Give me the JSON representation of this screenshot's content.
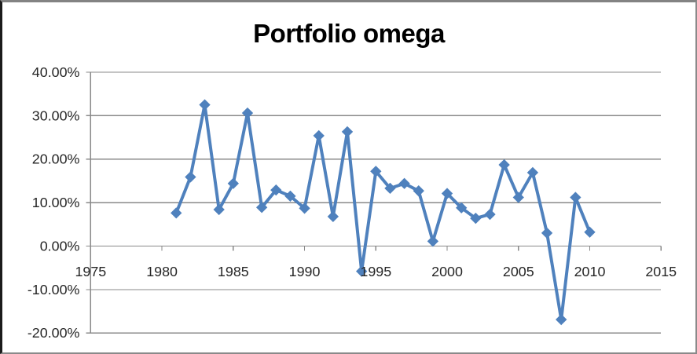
{
  "frame": {
    "background": "#ffffff",
    "border_color": "#8a8a8a",
    "border_left_color": "#1b1b1b"
  },
  "chart_data": {
    "type": "line",
    "title": "Portfolio omega",
    "x": [
      1981,
      1982,
      1983,
      1984,
      1985,
      1986,
      1987,
      1988,
      1989,
      1990,
      1991,
      1992,
      1993,
      1994,
      1995,
      1996,
      1997,
      1998,
      1999,
      2000,
      2001,
      2002,
      2003,
      2004,
      2005,
      2006,
      2007,
      2008,
      2009,
      2010
    ],
    "values": [
      7.6,
      15.9,
      32.5,
      8.4,
      14.4,
      30.6,
      8.9,
      12.9,
      11.5,
      8.7,
      25.4,
      6.8,
      26.3,
      -5.8,
      17.2,
      13.3,
      14.4,
      12.7,
      1.1,
      12.1,
      8.8,
      6.4,
      7.3,
      18.7,
      11.2,
      16.9,
      3.0,
      -16.9,
      11.2,
      3.2
    ],
    "values_unit": "percent",
    "xlabel": "",
    "ylabel": "",
    "xlim": [
      1975,
      2015
    ],
    "ylim": [
      -20,
      40
    ],
    "x_ticks": [
      1975,
      1980,
      1985,
      1990,
      1995,
      2000,
      2005,
      2010,
      2015
    ],
    "y_ticks": [
      40,
      30,
      20,
      10,
      0,
      -10,
      -20
    ],
    "y_tick_labels": [
      "40.00%",
      "30.00%",
      "20.00%",
      "10.00%",
      "0.00%",
      "-10.00%",
      "-20.00%"
    ],
    "x_tick_labels": [
      "1975",
      "1980",
      "1985",
      "1990",
      "1995",
      "2000",
      "2005",
      "2010",
      "2015"
    ],
    "grid": true,
    "legend": "none",
    "marker": "diamond",
    "colors": {
      "series": "#4F81BD",
      "gridline": "#898989",
      "axis": "#898989",
      "tick_label": "#262626",
      "title": "#000000"
    }
  }
}
